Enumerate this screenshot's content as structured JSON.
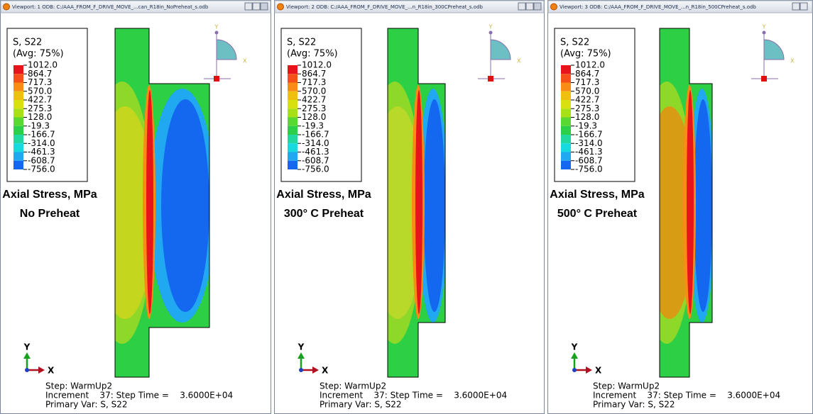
{
  "viewports": [
    {
      "title": "Viewport: 1   ODB: C:/AAA_FROM_F_DRIVE_MOVE_...can_R18in_NoPreheat_s.odb",
      "legend": {
        "title": "S, S22",
        "subtitle": "(Avg: 75%)",
        "labels": [
          "1012.0",
          "864.7",
          "717.3",
          "570.0",
          "422.7",
          "275.3",
          "128.0",
          "-19.3",
          "-166.7",
          "-314.0",
          "-461.3",
          "-608.7",
          "-756.0"
        ]
      },
      "annotation": [
        "Axial Stress, MPa",
        "No Preheat"
      ],
      "view_cube": {
        "y": "Y",
        "x": "X"
      },
      "triad": {
        "y": "Y",
        "x": "X"
      },
      "status": [
        "Step: WarmUp2",
        "Increment    37: Step Time =    3.6000E+04",
        "Primary Var: S, S22"
      ]
    },
    {
      "title": "Viewport: 2   ODB: C:/AAA_FROM_F_DRIVE_MOVE_...n_R18in_300CPreheat_s.odb",
      "legend": {
        "title": "S, S22",
        "subtitle": "(Avg: 75%)",
        "labels": [
          "1012.0",
          "864.7",
          "717.3",
          "570.0",
          "422.7",
          "275.3",
          "128.0",
          "-19.3",
          "-166.7",
          "-314.0",
          "-461.3",
          "-608.7",
          "-756.0"
        ]
      },
      "annotation": [
        "Axial Stress, MPa",
        "300° C Preheat"
      ],
      "view_cube": {
        "y": "Y",
        "x": "X"
      },
      "triad": {
        "y": "Y",
        "x": "X"
      },
      "status": [
        "Step: WarmUp2",
        "Increment    37: Step Time =    3.6000E+04",
        "Primary Var: S, S22"
      ]
    },
    {
      "title": "Viewport: 3   ODB: C:/AAA_FROM_F_DRIVE_MOVE_...n_R18in_500CPreheat_s.odb",
      "legend": {
        "title": "S, S22",
        "subtitle": "(Avg: 75%)",
        "labels": [
          "1012.0",
          "864.7",
          "717.3",
          "570.0",
          "422.7",
          "275.3",
          "128.0",
          "-19.3",
          "-166.7",
          "-314.0",
          "-461.3",
          "-608.7",
          "-756.0"
        ]
      },
      "annotation": [
        "Axial Stress, MPa",
        "500° C Preheat"
      ],
      "view_cube": {
        "y": "Y",
        "x": "X"
      },
      "triad": {
        "y": "Y",
        "x": "X"
      },
      "status": [
        "Step: WarmUp2",
        "Increment    37: Step Time =    3.6000E+04",
        "Primary Var: S, S22"
      ]
    }
  ]
}
